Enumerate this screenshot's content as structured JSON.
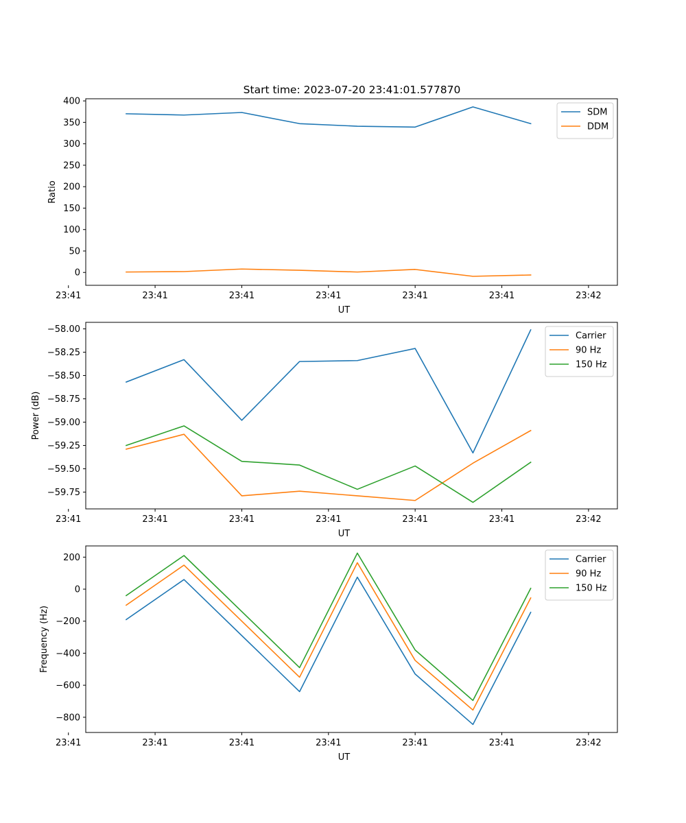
{
  "title": "Start time: 2023-07-20 23:41:01.577870",
  "chart_data": [
    {
      "type": "line",
      "xlabel": "UT",
      "ylabel": "Ratio",
      "x": [
        1,
        2,
        3,
        4,
        5,
        6,
        7,
        8
      ],
      "xlim": [
        0.3,
        9.5
      ],
      "xticks": [
        {
          "pos": 0,
          "label": "23:41"
        },
        {
          "pos": 1.5,
          "label": "23:41"
        },
        {
          "pos": 3,
          "label": "23:41"
        },
        {
          "pos": 4.5,
          "label": "23:41"
        },
        {
          "pos": 6,
          "label": "23:41"
        },
        {
          "pos": 7.5,
          "label": "23:41"
        },
        {
          "pos": 9,
          "label": "23:42"
        }
      ],
      "ylim": [
        -30,
        405
      ],
      "yticks": [
        {
          "pos": 0,
          "label": "0"
        },
        {
          "pos": 50,
          "label": "50"
        },
        {
          "pos": 100,
          "label": "100"
        },
        {
          "pos": 150,
          "label": "150"
        },
        {
          "pos": 200,
          "label": "200"
        },
        {
          "pos": 250,
          "label": "250"
        },
        {
          "pos": 300,
          "label": "300"
        },
        {
          "pos": 350,
          "label": "350"
        },
        {
          "pos": 400,
          "label": "400"
        }
      ],
      "legend_position": "top-right",
      "series": [
        {
          "name": "SDM",
          "color": "#1f77b4",
          "values": [
            370,
            367,
            373,
            347,
            341,
            339,
            386,
            347
          ]
        },
        {
          "name": "DDM",
          "color": "#ff7f0e",
          "values": [
            1,
            2,
            8,
            5,
            1,
            7,
            -9,
            -6
          ]
        }
      ]
    },
    {
      "type": "line",
      "xlabel": "UT",
      "ylabel": "Power (dB)",
      "x": [
        1,
        2,
        3,
        4,
        5,
        6,
        7,
        8
      ],
      "xlim": [
        0.3,
        9.5
      ],
      "xticks": [
        {
          "pos": 0,
          "label": "23:41"
        },
        {
          "pos": 1.5,
          "label": "23:41"
        },
        {
          "pos": 3,
          "label": "23:41"
        },
        {
          "pos": 4.5,
          "label": "23:41"
        },
        {
          "pos": 6,
          "label": "23:41"
        },
        {
          "pos": 7.5,
          "label": "23:41"
        },
        {
          "pos": 9,
          "label": "23:42"
        }
      ],
      "ylim": [
        -59.93,
        -57.93
      ],
      "yticks": [
        {
          "pos": -59.75,
          "label": "−59.75"
        },
        {
          "pos": -59.5,
          "label": "−59.50"
        },
        {
          "pos": -59.25,
          "label": "−59.25"
        },
        {
          "pos": -59.0,
          "label": "−59.00"
        },
        {
          "pos": -58.75,
          "label": "−58.75"
        },
        {
          "pos": -58.5,
          "label": "−58.50"
        },
        {
          "pos": -58.25,
          "label": "−58.25"
        },
        {
          "pos": -58.0,
          "label": "−58.00"
        }
      ],
      "legend_position": "top-right",
      "series": [
        {
          "name": "Carrier",
          "color": "#1f77b4",
          "values": [
            -58.57,
            -58.33,
            -58.98,
            -58.35,
            -58.34,
            -58.21,
            -59.33,
            -58.01
          ]
        },
        {
          "name": "90 Hz",
          "color": "#ff7f0e",
          "values": [
            -59.29,
            -59.13,
            -59.79,
            -59.74,
            -59.79,
            -59.84,
            -59.44,
            -59.09
          ]
        },
        {
          "name": "150 Hz",
          "color": "#2ca02c",
          "values": [
            -59.25,
            -59.04,
            -59.42,
            -59.46,
            -59.72,
            -59.47,
            -59.86,
            -59.43
          ]
        }
      ]
    },
    {
      "type": "line",
      "xlabel": "UT",
      "ylabel": "Frequency (Hz)",
      "x": [
        1,
        2,
        3,
        4,
        5,
        6,
        7,
        8
      ],
      "xlim": [
        0.3,
        9.5
      ],
      "xticks": [
        {
          "pos": 0,
          "label": "23:41"
        },
        {
          "pos": 1.5,
          "label": "23:41"
        },
        {
          "pos": 3,
          "label": "23:41"
        },
        {
          "pos": 4.5,
          "label": "23:41"
        },
        {
          "pos": 6,
          "label": "23:41"
        },
        {
          "pos": 7.5,
          "label": "23:41"
        },
        {
          "pos": 9,
          "label": "23:42"
        }
      ],
      "ylim": [
        -895,
        270
      ],
      "yticks": [
        {
          "pos": -800,
          "label": "−800"
        },
        {
          "pos": -600,
          "label": "−600"
        },
        {
          "pos": -400,
          "label": "−400"
        },
        {
          "pos": -200,
          "label": "−200"
        },
        {
          "pos": 0,
          "label": "0"
        },
        {
          "pos": 200,
          "label": "200"
        }
      ],
      "legend_position": "top-right",
      "series": [
        {
          "name": "Carrier",
          "color": "#1f77b4",
          "values": [
            -190,
            60,
            -290,
            -640,
            75,
            -530,
            -845,
            -145
          ]
        },
        {
          "name": "90 Hz",
          "color": "#ff7f0e",
          "values": [
            -100,
            150,
            -200,
            -550,
            165,
            -445,
            -755,
            -55
          ]
        },
        {
          "name": "150 Hz",
          "color": "#2ca02c",
          "values": [
            -40,
            210,
            -140,
            -490,
            225,
            -380,
            -695,
            5
          ]
        }
      ]
    }
  ]
}
